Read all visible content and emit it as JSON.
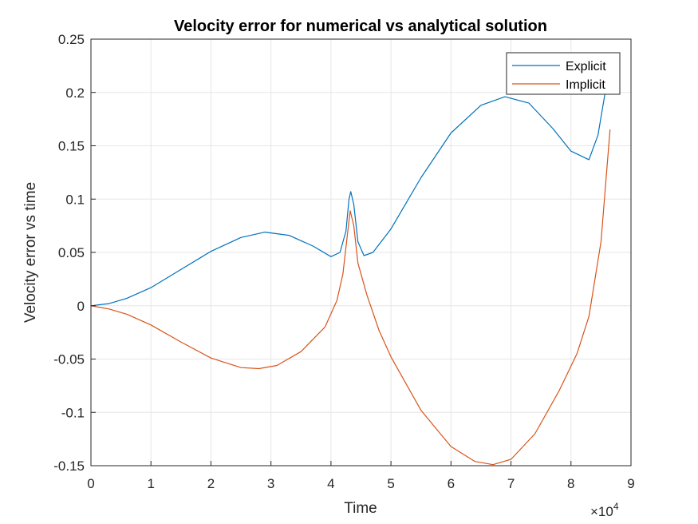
{
  "chart_data": {
    "type": "line",
    "title": "Velocity error for numerical vs analytical solution",
    "xlabel": "Time",
    "ylabel": "Velocity error vs time",
    "x_exponent_base": "×10",
    "x_exponent_power": "4",
    "xlim": [
      0,
      9
    ],
    "ylim": [
      -0.15,
      0.25
    ],
    "grid": true,
    "legend_position": "top-right",
    "x_ticks": [
      0,
      1,
      2,
      3,
      4,
      5,
      6,
      7,
      8,
      9
    ],
    "y_ticks": [
      -0.15,
      -0.1,
      -0.05,
      0,
      0.05,
      0.1,
      0.15,
      0.2,
      0.25
    ],
    "x_tick_labels": [
      "0",
      "1",
      "2",
      "3",
      "4",
      "5",
      "6",
      "7",
      "8",
      "9"
    ],
    "y_tick_labels": [
      "-0.15",
      "-0.1",
      "-0.05",
      "0",
      "0.05",
      "0.1",
      "0.15",
      "0.2",
      "0.25"
    ],
    "series": [
      {
        "name": "Explicit",
        "color": "#0072BD",
        "x": [
          0,
          0.3,
          0.6,
          1.0,
          1.5,
          2.0,
          2.5,
          2.9,
          3.3,
          3.7,
          4.0,
          4.15,
          4.25,
          4.3,
          4.33,
          4.38,
          4.45,
          4.55,
          4.7,
          5.0,
          5.5,
          6.0,
          6.5,
          6.9,
          7.3,
          7.7,
          8.0,
          8.3,
          8.45,
          8.6
        ],
        "values": [
          0,
          0.002,
          0.007,
          0.017,
          0.034,
          0.051,
          0.064,
          0.069,
          0.066,
          0.056,
          0.046,
          0.05,
          0.07,
          0.1,
          0.107,
          0.095,
          0.06,
          0.047,
          0.05,
          0.072,
          0.12,
          0.162,
          0.188,
          0.196,
          0.19,
          0.166,
          0.145,
          0.137,
          0.16,
          0.21
        ]
      },
      {
        "name": "Implicit",
        "color": "#D95319",
        "x": [
          0,
          0.3,
          0.6,
          1.0,
          1.5,
          2.0,
          2.5,
          2.8,
          3.1,
          3.5,
          3.9,
          4.1,
          4.2,
          4.28,
          4.32,
          4.38,
          4.45,
          4.6,
          4.8,
          5.0,
          5.5,
          6.0,
          6.4,
          6.7,
          7.0,
          7.4,
          7.8,
          8.1,
          8.3,
          8.5,
          8.65
        ],
        "values": [
          0,
          -0.003,
          -0.008,
          -0.018,
          -0.034,
          -0.049,
          -0.058,
          -0.059,
          -0.056,
          -0.043,
          -0.02,
          0.005,
          0.03,
          0.07,
          0.089,
          0.075,
          0.04,
          0.01,
          -0.023,
          -0.048,
          -0.098,
          -0.132,
          -0.146,
          -0.149,
          -0.144,
          -0.12,
          -0.08,
          -0.045,
          -0.01,
          0.06,
          0.165
        ]
      }
    ]
  }
}
